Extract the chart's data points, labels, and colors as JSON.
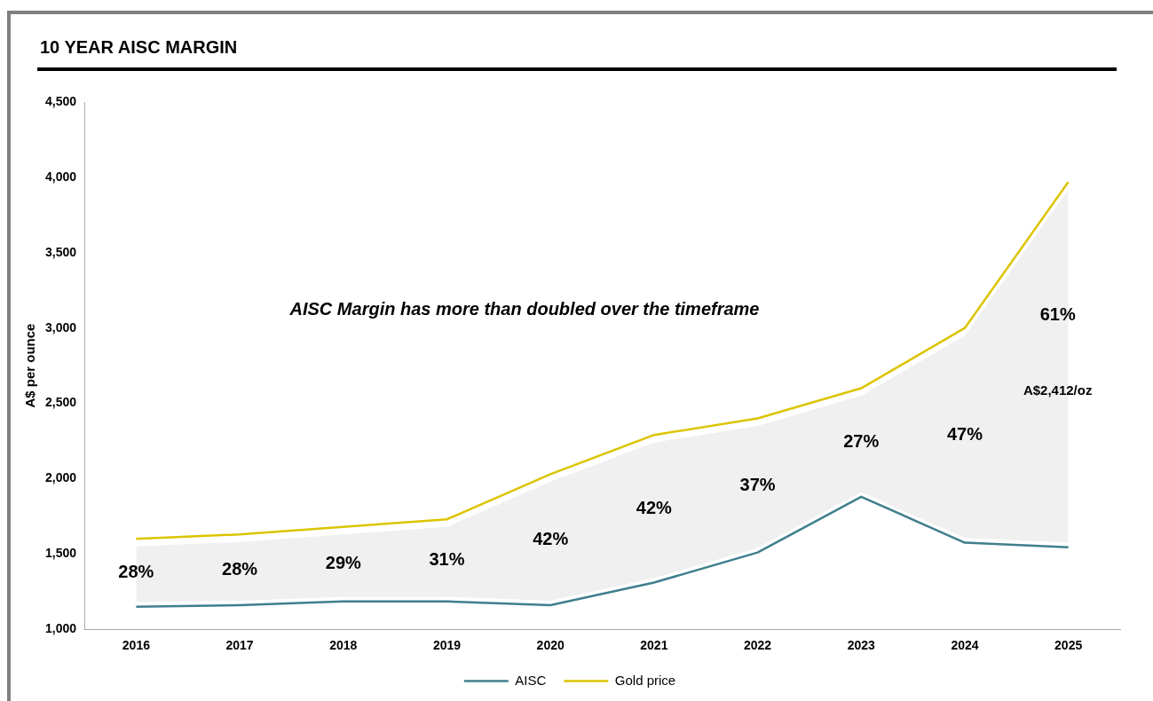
{
  "chart_data": {
    "type": "line",
    "title": "10 YEAR AISC MARGIN",
    "ylabel": "A$ per ounce",
    "categories": [
      "2016",
      "2017",
      "2018",
      "2019",
      "2020",
      "2021",
      "2022",
      "2023",
      "2024",
      "2025"
    ],
    "series": [
      {
        "name": "AISC",
        "color": "#3f7f8c",
        "values": [
          1150,
          1160,
          1185,
          1185,
          1160,
          1310,
          1510,
          1880,
          1575,
          1545
        ],
        "lower": [
          1180,
          1190,
          1215,
          1215,
          1190,
          1340,
          1540,
          1910,
          1605,
          1575
        ],
        "upper": [
          1550,
          1580,
          1630,
          1680,
          1980,
          2240,
          2350,
          2550,
          2950,
          3920
        ]
      },
      {
        "name": "Gold price",
        "color": "#dcc400",
        "values": [
          1600,
          1630,
          1680,
          1730,
          2030,
          2290,
          2400,
          2600,
          3000,
          3970
        ]
      }
    ],
    "ylim": [
      1000,
      4500
    ],
    "yticks": [
      {
        "value": 1000,
        "label": "1,000"
      },
      {
        "value": 1500,
        "label": "1,500"
      },
      {
        "value": 2000,
        "label": "2,000"
      },
      {
        "value": 2500,
        "label": "2,500"
      },
      {
        "value": 3000,
        "label": "3,000"
      },
      {
        "value": 3500,
        "label": "3,500"
      },
      {
        "value": 4000,
        "label": "4,000"
      },
      {
        "value": 4500,
        "label": "4,500"
      }
    ],
    "grid": false,
    "legend": "bottom",
    "marker": "none",
    "line_style": "solid",
    "annotations": [
      "AISC Margin has more than doubled over the timeframe",
      "28%",
      "28%",
      "29%",
      "31%",
      "42%",
      "42%",
      "37%",
      "27%",
      "47%",
      "61%",
      "A$2,412/oz"
    ]
  }
}
